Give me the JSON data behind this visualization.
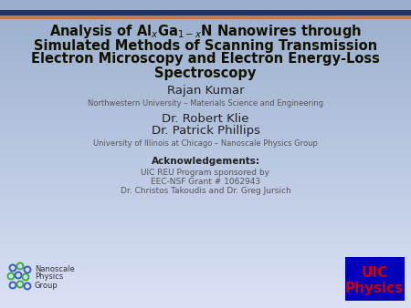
{
  "title_line1": "Analysis of Al$_x$Ga$_{1-x}$N Nanowires through",
  "title_line2": "Simulated Methods of Scanning Transmission",
  "title_line3": "Electron Microscopy and Electron Energy-Loss",
  "title_line4": "Spectroscopy",
  "author_name": "Rajan Kumar",
  "author_affil": "Northwestern University – Materials Science and Engineering",
  "advisor1": "Dr. Robert Klie",
  "advisor2": "Dr. Patrick Phillips",
  "advisor_affil": "University of Illinois at Chicago – Nanoscale Physics Group",
  "ack_title": "Acknowledgements:",
  "ack_line1": "UIC REU Program sponsored by",
  "ack_line2": "EEC-NSF Grant # 1062943",
  "ack_line3": "Dr. Christos Takoudis and Dr. Greg Jursich",
  "uic_box_color": "#0000bb",
  "uic_text_color": "#cc0000",
  "title_color": "#111100",
  "text_dark": "#222222",
  "text_medium": "#555555",
  "border_dark_color": "#222244",
  "border_orange_color": "#c87840",
  "bg_top": "#6688cc",
  "bg_bottom": "#d8e4f4"
}
